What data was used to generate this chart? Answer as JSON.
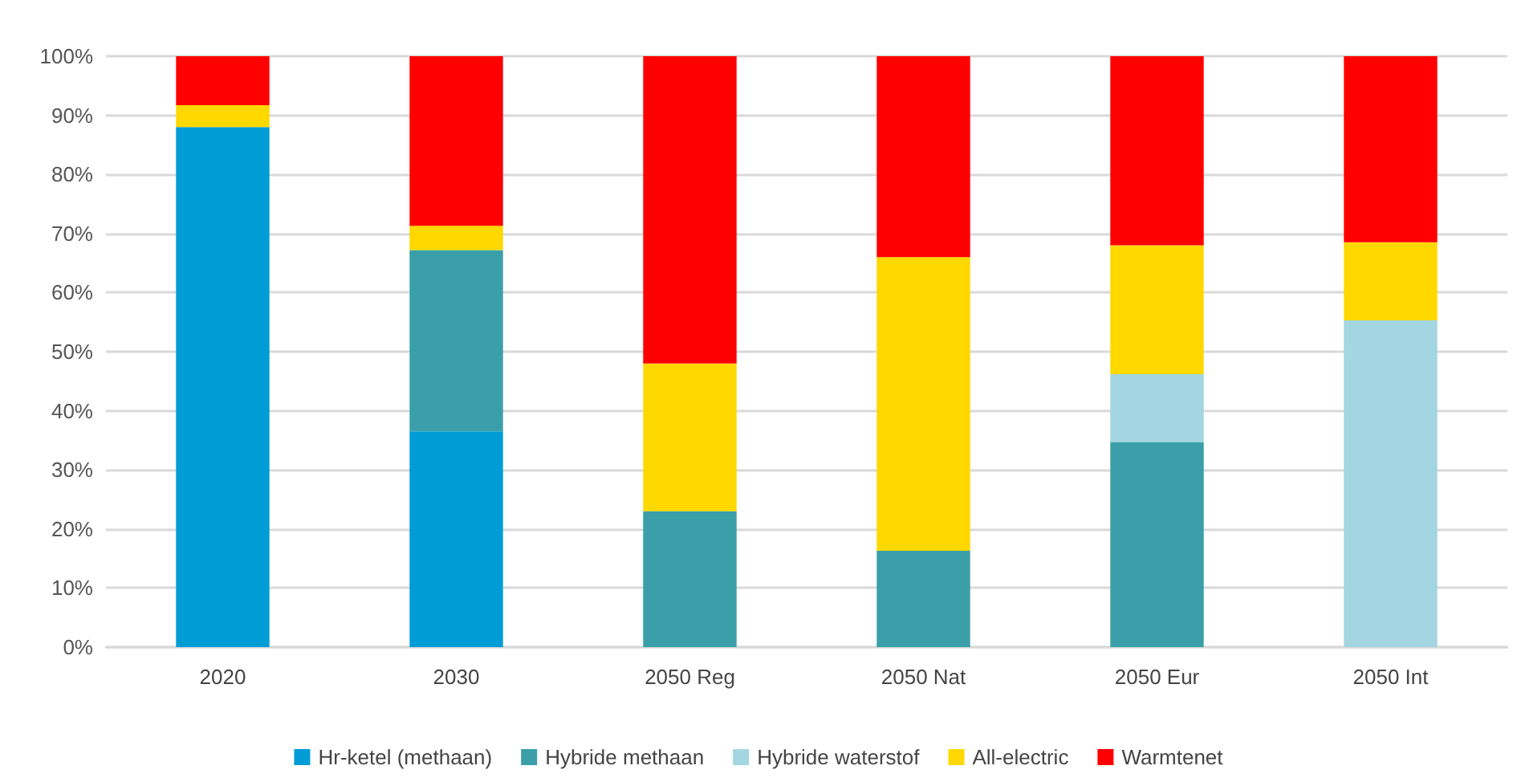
{
  "chart_data": {
    "type": "bar",
    "stacked": true,
    "categories": [
      "2020",
      "2030",
      "2050 Reg",
      "2050 Nat",
      "2050 Eur",
      "2050 Int"
    ],
    "series": [
      {
        "name": "Hr-ketel (methaan)",
        "color": "#009cd6",
        "values": [
          88,
          36.5,
          null,
          null,
          null,
          null
        ]
      },
      {
        "name": "Hybride methaan",
        "color": "#3a9fa8",
        "values": [
          null,
          30.7,
          23,
          16.3,
          34.7,
          null
        ]
      },
      {
        "name": "Hybride waterstof",
        "color": "#a3d6e0",
        "values": [
          null,
          null,
          null,
          null,
          11.5,
          55.3
        ]
      },
      {
        "name": "All-electric",
        "color": "#ffd800",
        "values": [
          3.7,
          4.1,
          25,
          49.7,
          21.8,
          13.2
        ]
      },
      {
        "name": "Warmtenet",
        "color": "#ff0000",
        "values": [
          8.3,
          28.7,
          52,
          34,
          32,
          31.5
        ]
      }
    ],
    "ylim": [
      0,
      100
    ],
    "yticks": [
      {
        "value": 0,
        "label": "0%"
      },
      {
        "value": 10,
        "label": "10%"
      },
      {
        "value": 20,
        "label": "20%"
      },
      {
        "value": 30,
        "label": "30%"
      },
      {
        "value": 40,
        "label": "40%"
      },
      {
        "value": 50,
        "label": "50%"
      },
      {
        "value": 60,
        "label": "60%"
      },
      {
        "value": 70,
        "label": "70%"
      },
      {
        "value": 80,
        "label": "80%"
      },
      {
        "value": 90,
        "label": "90%"
      },
      {
        "value": 100,
        "label": "100%"
      }
    ],
    "grid": "y",
    "legend": "bottom"
  }
}
